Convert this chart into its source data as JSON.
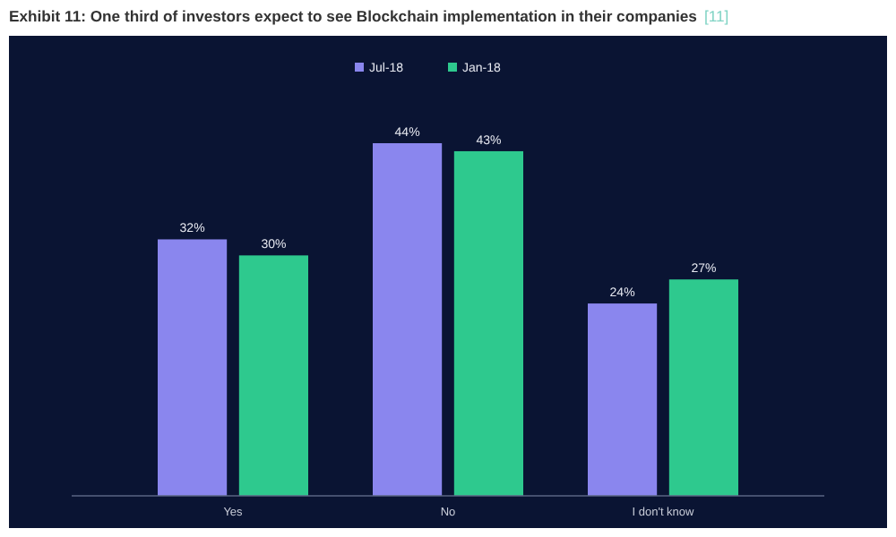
{
  "chart_data": {
    "type": "bar",
    "title": "Exhibit 11: One third of investors expect to see Blockchain implementation in their companies",
    "annotations": [
      "[11]"
    ],
    "categories": [
      "Yes",
      "No",
      "I don't know"
    ],
    "legend": "top",
    "series": [
      {
        "name": "Jul-18",
        "color": "#8a86ee",
        "values": [
          32,
          44,
          24
        ],
        "value_labels": [
          "32%",
          "44%",
          "24%"
        ]
      },
      {
        "name": "Jan-18",
        "color": "#2ec98e",
        "values": [
          30,
          43,
          27
        ],
        "value_labels": [
          "30%",
          "43%",
          "27%"
        ]
      }
    ]
  }
}
